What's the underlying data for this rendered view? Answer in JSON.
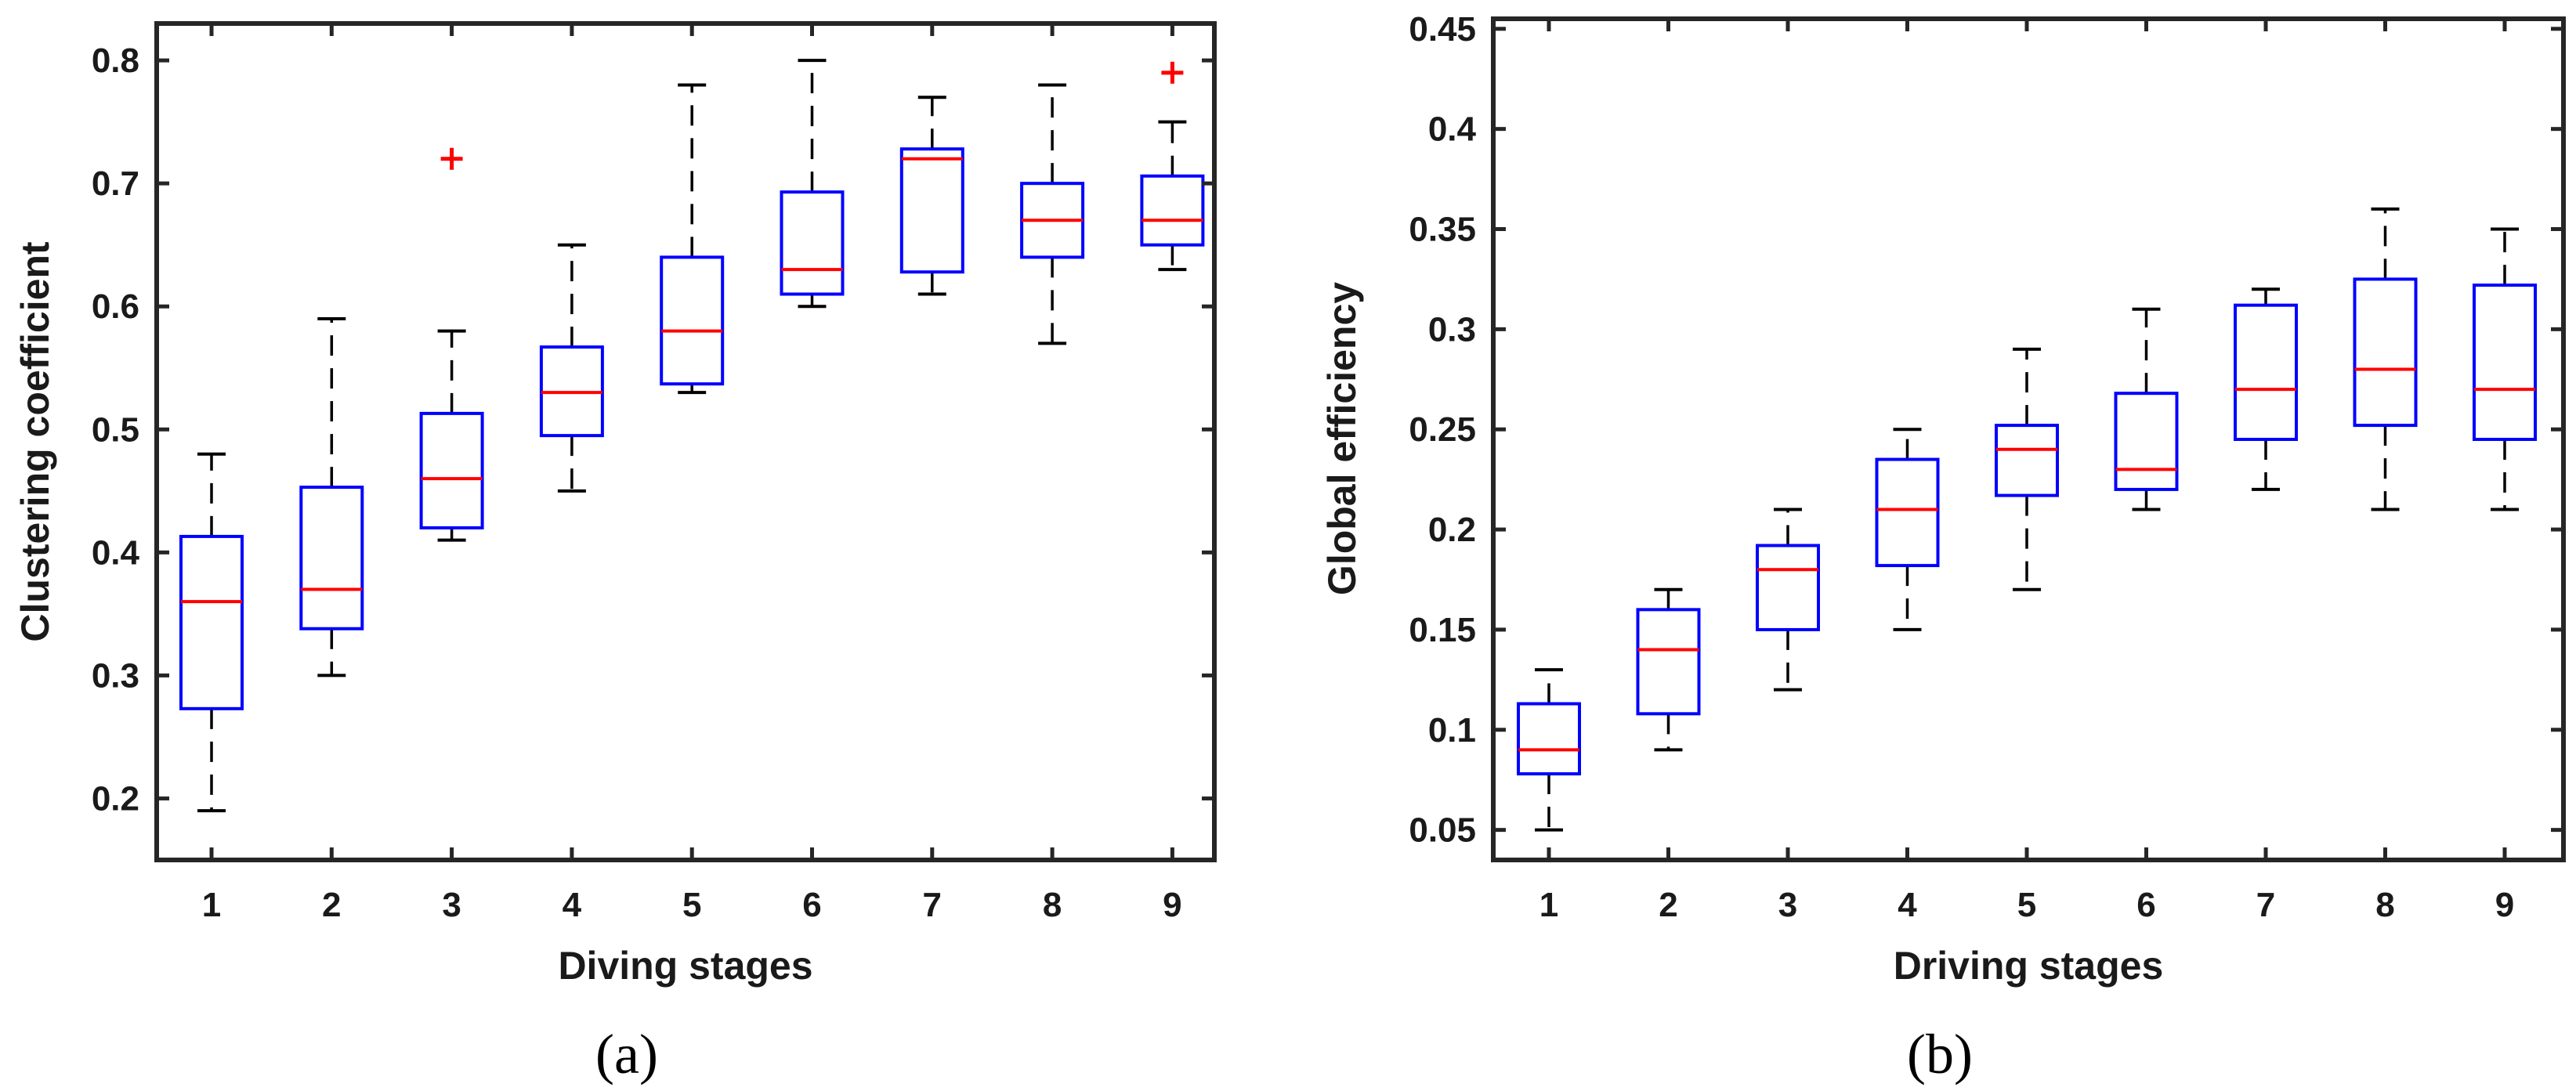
{
  "chart_data": [
    {
      "type": "boxplot",
      "panel_label": "(a)",
      "xlabel": "Diving stages",
      "ylabel": "Clustering coefficient",
      "categories": [
        "1",
        "2",
        "3",
        "4",
        "5",
        "6",
        "7",
        "8",
        "9"
      ],
      "ylim": [
        0.15,
        0.83
      ],
      "yticks": [
        "0.2",
        "0.3",
        "0.4",
        "0.5",
        "0.6",
        "0.7",
        "0.8"
      ],
      "boxes": [
        {
          "min": 0.19,
          "q1": 0.273,
          "median": 0.36,
          "q3": 0.413,
          "max": 0.48,
          "outliers": []
        },
        {
          "min": 0.3,
          "q1": 0.338,
          "median": 0.37,
          "q3": 0.453,
          "max": 0.59,
          "outliers": []
        },
        {
          "min": 0.41,
          "q1": 0.42,
          "median": 0.46,
          "q3": 0.513,
          "max": 0.58,
          "outliers": [
            0.72
          ]
        },
        {
          "min": 0.45,
          "q1": 0.495,
          "median": 0.53,
          "q3": 0.567,
          "max": 0.65,
          "outliers": []
        },
        {
          "min": 0.53,
          "q1": 0.537,
          "median": 0.58,
          "q3": 0.64,
          "max": 0.78,
          "outliers": []
        },
        {
          "min": 0.6,
          "q1": 0.61,
          "median": 0.63,
          "q3": 0.693,
          "max": 0.8,
          "outliers": []
        },
        {
          "min": 0.61,
          "q1": 0.628,
          "median": 0.72,
          "q3": 0.728,
          "max": 0.77,
          "outliers": []
        },
        {
          "min": 0.57,
          "q1": 0.64,
          "median": 0.67,
          "q3": 0.7,
          "max": 0.78,
          "outliers": []
        },
        {
          "min": 0.63,
          "q1": 0.65,
          "median": 0.67,
          "q3": 0.706,
          "max": 0.75,
          "outliers": [
            0.79
          ]
        }
      ]
    },
    {
      "type": "boxplot",
      "panel_label": "(b)",
      "xlabel": "Driving stages",
      "ylabel": "Global efficiency",
      "categories": [
        "1",
        "2",
        "3",
        "4",
        "5",
        "6",
        "7",
        "8",
        "9"
      ],
      "ylim": [
        0.035,
        0.455
      ],
      "yticks": [
        "0.05",
        "0.1",
        "0.15",
        "0.2",
        "0.25",
        "0.3",
        "0.35",
        "0.4",
        "0.45"
      ],
      "boxes": [
        {
          "min": 0.05,
          "q1": 0.078,
          "median": 0.09,
          "q3": 0.113,
          "max": 0.13,
          "outliers": []
        },
        {
          "min": 0.09,
          "q1": 0.108,
          "median": 0.14,
          "q3": 0.16,
          "max": 0.17,
          "outliers": []
        },
        {
          "min": 0.12,
          "q1": 0.15,
          "median": 0.18,
          "q3": 0.192,
          "max": 0.21,
          "outliers": []
        },
        {
          "min": 0.15,
          "q1": 0.182,
          "median": 0.21,
          "q3": 0.235,
          "max": 0.25,
          "outliers": []
        },
        {
          "min": 0.17,
          "q1": 0.217,
          "median": 0.24,
          "q3": 0.252,
          "max": 0.29,
          "outliers": []
        },
        {
          "min": 0.21,
          "q1": 0.22,
          "median": 0.23,
          "q3": 0.268,
          "max": 0.31,
          "outliers": []
        },
        {
          "min": 0.22,
          "q1": 0.245,
          "median": 0.27,
          "q3": 0.312,
          "max": 0.32,
          "outliers": []
        },
        {
          "min": 0.21,
          "q1": 0.252,
          "median": 0.28,
          "q3": 0.325,
          "max": 0.36,
          "outliers": []
        },
        {
          "min": 0.21,
          "q1": 0.245,
          "median": 0.27,
          "q3": 0.322,
          "max": 0.35,
          "outliers": []
        }
      ]
    }
  ],
  "style": {
    "box_color": "#0000ff",
    "median_color": "#ff0000",
    "whisker_color": "#000000",
    "outlier_color": "#ff0000",
    "axis_color": "#262626"
  }
}
